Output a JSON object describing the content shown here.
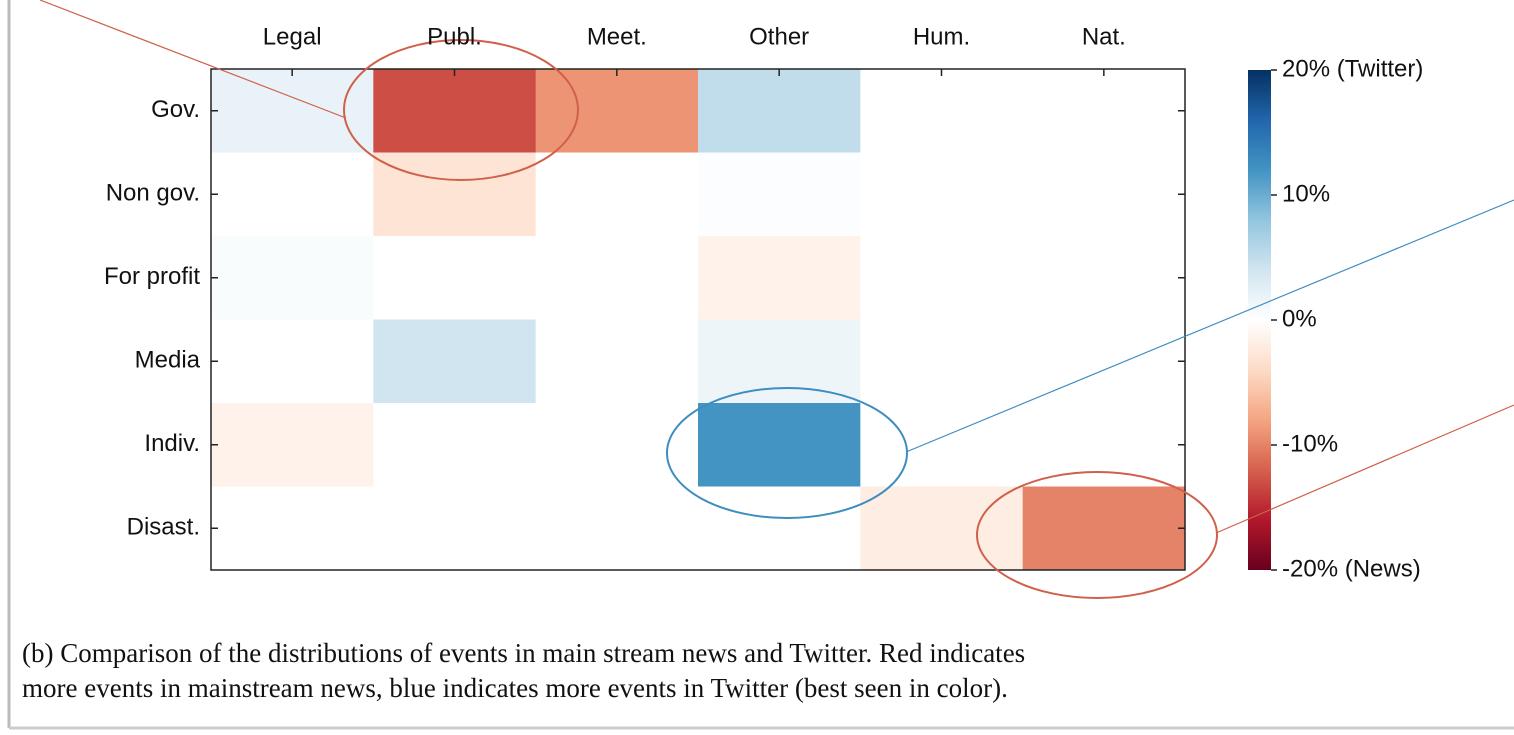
{
  "chart_data": {
    "type": "heatmap",
    "columns": [
      "Legal",
      "Publ.",
      "Meet.",
      "Other",
      "Hum.",
      "Nat."
    ],
    "rows": [
      "Gov.",
      "Non gov.",
      "For profit",
      "Media",
      "Indiv.",
      "Disast."
    ],
    "values": [
      [
        2,
        -13,
        -9,
        5,
        0,
        0
      ],
      [
        0,
        -3,
        0,
        0.3,
        0,
        0
      ],
      [
        0.5,
        0,
        0,
        -1.5,
        0,
        0
      ],
      [
        0,
        4,
        0,
        1.5,
        0,
        0
      ],
      [
        -1.5,
        0,
        0,
        12,
        0,
        0
      ],
      [
        0,
        0,
        0,
        0,
        -2,
        -10
      ]
    ],
    "zlim": [
      -20,
      20
    ],
    "zticks": [
      {
        "value": 20,
        "label": "20% (Twitter)"
      },
      {
        "value": 10,
        "label": "10%"
      },
      {
        "value": 0,
        "label": "0%"
      },
      {
        "value": -10,
        "label": "-10%"
      },
      {
        "value": -20,
        "label": "-20% (News)"
      }
    ],
    "colorscale": [
      "#67001f",
      "#b2182b",
      "#d6604d",
      "#f4a582",
      "#fddbc7",
      "#ffffff",
      "#d1e5f0",
      "#92c5de",
      "#4393c3",
      "#2166ac",
      "#053061"
    ],
    "caption": [
      "(b) Comparison of the distributions of events in main stream news and Twitter. Red indicates",
      "more events in mainstream news, blue indicates more events in Twitter (best seen in color)."
    ]
  }
}
